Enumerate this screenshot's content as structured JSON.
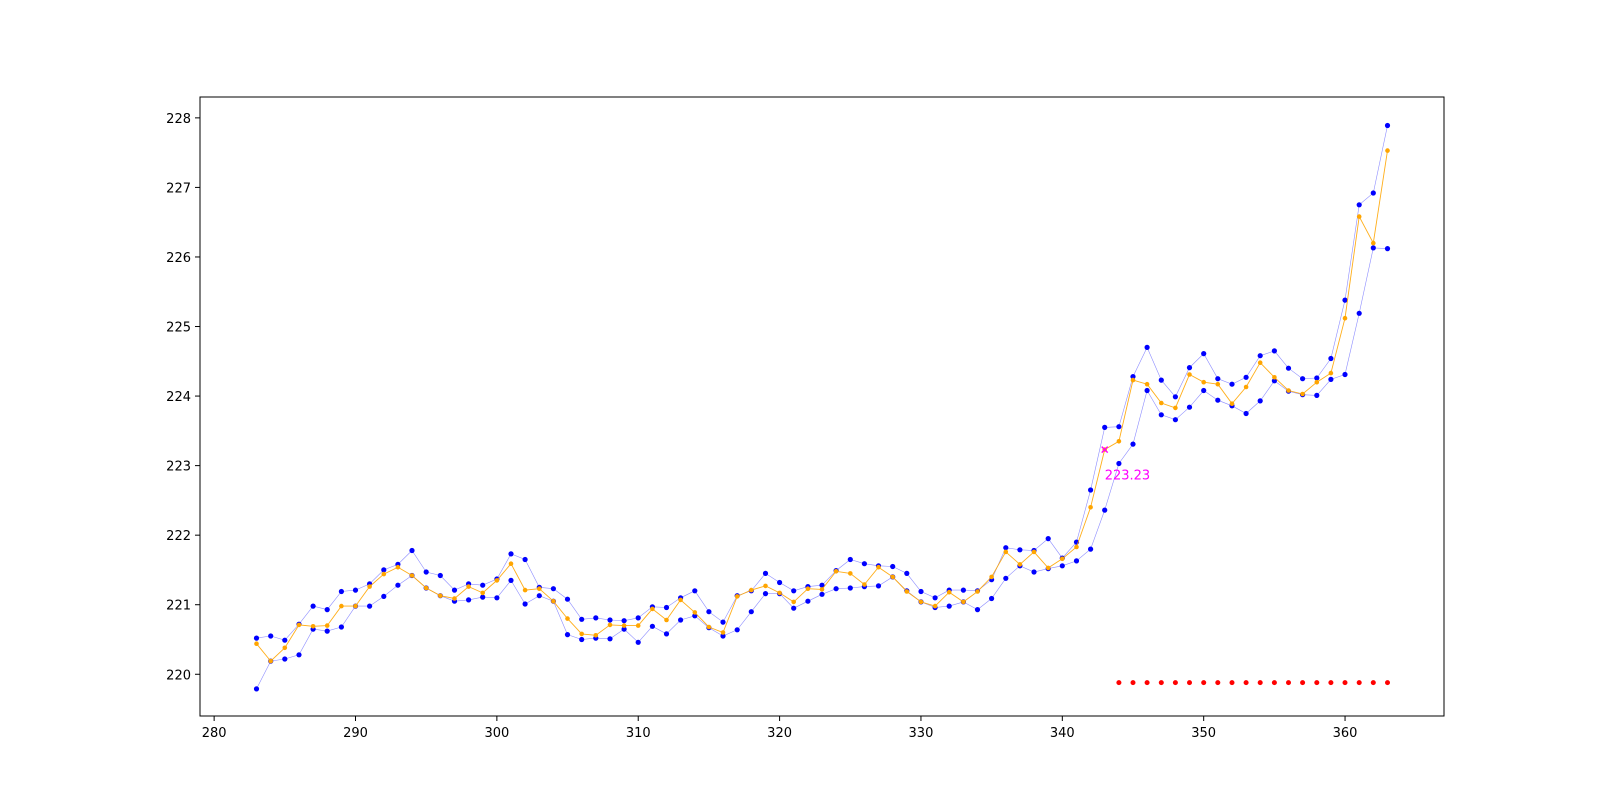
{
  "chart_data": {
    "type": "line",
    "title": "",
    "xlabel": "",
    "ylabel": "",
    "xlim": [
      279,
      367
    ],
    "ylim": [
      219.4,
      228.3
    ],
    "grid": false,
    "x_ticks": [
      280,
      290,
      300,
      310,
      320,
      330,
      340,
      350,
      360
    ],
    "y_ticks": [
      220,
      221,
      222,
      223,
      224,
      225,
      226,
      227,
      228
    ],
    "x": [
      283,
      284,
      285,
      286,
      287,
      288,
      289,
      290,
      291,
      292,
      293,
      294,
      295,
      296,
      297,
      298,
      299,
      300,
      301,
      302,
      303,
      304,
      305,
      306,
      307,
      308,
      309,
      310,
      311,
      312,
      313,
      314,
      315,
      316,
      317,
      318,
      319,
      320,
      321,
      322,
      323,
      324,
      325,
      326,
      327,
      328,
      329,
      330,
      331,
      332,
      333,
      334,
      335,
      336,
      337,
      338,
      339,
      340,
      341,
      342,
      343,
      344,
      345,
      346,
      347,
      348,
      349,
      350,
      351,
      352,
      353,
      354,
      355,
      356,
      357,
      358,
      359,
      360,
      361,
      362,
      363
    ],
    "series": [
      {
        "color": "#0000ff",
        "values": [
          220.52,
          220.55,
          220.49,
          220.72,
          220.98,
          220.93,
          221.19,
          221.21,
          221.3,
          221.5,
          221.58,
          221.78,
          221.47,
          221.42,
          221.21,
          221.3,
          221.28,
          221.37,
          221.73,
          221.65,
          221.25,
          221.23,
          221.08,
          220.79,
          220.81,
          220.78,
          220.77,
          220.81,
          220.97,
          220.96,
          221.1,
          221.2,
          220.9,
          220.75,
          221.13,
          221.2,
          221.45,
          221.32,
          221.2,
          221.26,
          221.28,
          221.49,
          221.65,
          221.59,
          221.56,
          221.55,
          221.45,
          221.19,
          221.1,
          221.21,
          221.21,
          221.2,
          221.36,
          221.82,
          221.79,
          221.78,
          221.95,
          221.67,
          221.9,
          222.65,
          223.55,
          223.56,
          224.28,
          224.7,
          224.23,
          223.99,
          224.41,
          224.61,
          224.25,
          224.17,
          224.27,
          224.58,
          224.65,
          224.4,
          224.25,
          224.26,
          224.54,
          225.38,
          226.75,
          226.92,
          227.89
        ]
      },
      {
        "color": "#0000ff",
        "values": [
          219.79,
          220.19,
          220.22,
          220.28,
          220.65,
          220.62,
          220.68,
          220.98,
          220.98,
          221.12,
          221.28,
          221.42,
          221.24,
          221.13,
          221.05,
          221.07,
          221.11,
          221.1,
          221.35,
          221.01,
          221.13,
          221.05,
          220.57,
          220.5,
          220.52,
          220.51,
          220.65,
          220.46,
          220.69,
          220.58,
          220.78,
          220.84,
          220.67,
          220.55,
          220.64,
          220.9,
          221.16,
          221.16,
          220.95,
          221.05,
          221.15,
          221.23,
          221.24,
          221.26,
          221.27,
          221.4,
          221.2,
          221.04,
          220.96,
          220.98,
          221.04,
          220.93,
          221.09,
          221.38,
          221.56,
          221.47,
          221.52,
          221.56,
          221.63,
          221.8,
          222.36,
          223.03,
          223.31,
          224.08,
          223.73,
          223.66,
          223.84,
          224.08,
          223.94,
          223.86,
          223.75,
          223.93,
          224.22,
          224.07,
          224.02,
          224.01,
          224.24,
          224.31,
          225.19,
          226.13,
          226.12
        ]
      },
      {
        "color": "#ffa500",
        "values": [
          220.44,
          220.19,
          220.38,
          220.71,
          220.69,
          220.7,
          220.98,
          220.98,
          221.26,
          221.44,
          221.54,
          221.42,
          221.24,
          221.13,
          221.09,
          221.26,
          221.17,
          221.35,
          221.59,
          221.21,
          221.23,
          221.05,
          220.8,
          220.58,
          220.56,
          220.71,
          220.7,
          220.7,
          220.94,
          220.78,
          221.07,
          220.89,
          220.68,
          220.6,
          221.12,
          221.21,
          221.27,
          221.17,
          221.04,
          221.23,
          221.22,
          221.48,
          221.45,
          221.29,
          221.54,
          221.4,
          221.19,
          221.04,
          220.98,
          221.18,
          221.04,
          221.19,
          221.4,
          221.76,
          221.58,
          221.76,
          221.53,
          221.66,
          221.83,
          222.4,
          223.23,
          223.35,
          224.23,
          224.17,
          223.9,
          223.83,
          224.31,
          224.2,
          224.17,
          223.89,
          224.13,
          224.48,
          224.27,
          224.08,
          224.03,
          224.2,
          224.33,
          225.12,
          226.58,
          226.2,
          227.53
        ]
      }
    ],
    "marker_series": {
      "color": "#ff0000",
      "x": [
        344,
        345,
        346,
        347,
        348,
        349,
        350,
        351,
        352,
        353,
        354,
        355,
        356,
        357,
        358,
        359,
        360,
        361,
        362,
        363
      ],
      "y": 219.88
    },
    "annotation": {
      "x": 343,
      "y": 223.23,
      "text": "223.23",
      "color": "#ff00ff"
    }
  }
}
